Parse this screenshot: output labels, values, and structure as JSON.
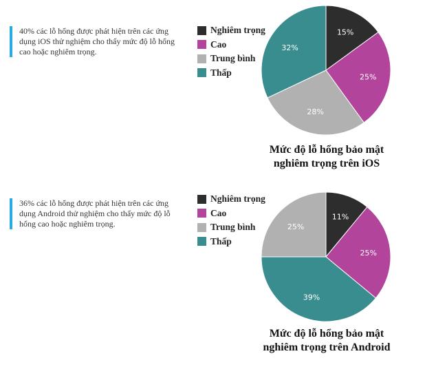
{
  "legend_labels": [
    "Nghiêm trọng",
    "Cao",
    "Trung bình",
    "Thấp"
  ],
  "colors": {
    "critical": "#2d2d2d",
    "high": "#b2449b",
    "medium": "#b2b1b2",
    "low": "#3a8d8f",
    "note_bar": "#27aae1"
  },
  "panels": [
    {
      "note": "40% các lỗ hổng được phát hiện trên các ứng dụng iOS thử nghiệm cho thấy mức độ lỗ hổng cao hoặc nghiêm trọng.",
      "title_line1": "Mức độ lỗ hổng bảo mật",
      "title_line2": "nghiêm trọng trên iOS"
    },
    {
      "note": "36% các lỗ hổng được phát hiện trên các ứng dụng Android thử nghiệm cho thấy mức độ lỗ hổng cao hoặc nghiêm trọng.",
      "title_line1": "Mức độ lỗ hổng bảo mật",
      "title_line2": "nghiêm trọng trên Android"
    }
  ],
  "chart_data": [
    {
      "type": "pie",
      "title": "Mức độ lỗ hổng bảo mật nghiêm trọng trên iOS",
      "categories": [
        "Nghiêm trọng",
        "Cao",
        "Trung bình",
        "Thấp"
      ],
      "values": [
        15,
        25,
        28,
        32
      ],
      "labels": [
        "15%",
        "25%",
        "28%",
        "32%"
      ],
      "colors": [
        "#2d2d2d",
        "#b2449b",
        "#b2b1b2",
        "#3a8d8f"
      ],
      "legend": "left"
    },
    {
      "type": "pie",
      "title": "Mức độ lỗ hổng bảo mật nghiêm trọng trên Android",
      "categories": [
        "Nghiêm trọng",
        "Cao",
        "Trung bình",
        "Thấp"
      ],
      "values": [
        11,
        25,
        39,
        25
      ],
      "labels": [
        "11%",
        "25%",
        "39%",
        "25%"
      ],
      "colors": [
        "#2d2d2d",
        "#b2449b",
        "#3a8d8f",
        "#b2b1b2"
      ],
      "legend": "left"
    }
  ]
}
